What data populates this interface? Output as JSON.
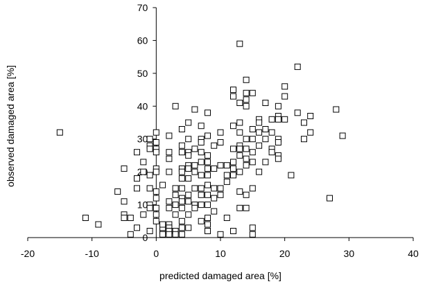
{
  "chart_data": {
    "type": "scatter",
    "title": "",
    "xlabel": "predicted damaged area [%]",
    "ylabel": "observed damaged area [%]",
    "xlim": [
      -20,
      40
    ],
    "ylim": [
      0,
      70
    ],
    "xticks": [
      -20,
      -10,
      0,
      10,
      20,
      30,
      40
    ],
    "yticks": [
      0,
      10,
      20,
      30,
      40,
      50,
      60,
      70
    ],
    "grid": false,
    "marker": "open-square",
    "colors": {
      "marker": "#000000",
      "axis": "#000000",
      "background": "#ffffff"
    },
    "series": [
      {
        "points": [
          [
            -15,
            32
          ],
          [
            -11,
            6
          ],
          [
            -9,
            4
          ],
          [
            -6,
            14
          ],
          [
            -5,
            21
          ],
          [
            -5,
            11
          ],
          [
            -5,
            7
          ],
          [
            -5,
            6
          ],
          [
            -4,
            6
          ],
          [
            -4,
            1
          ],
          [
            -3,
            3
          ],
          [
            -3,
            15
          ],
          [
            -3,
            18
          ],
          [
            -3,
            26
          ],
          [
            -2,
            7
          ],
          [
            -2,
            20
          ],
          [
            -2,
            23
          ],
          [
            -1,
            30
          ],
          [
            -1,
            28
          ],
          [
            -1,
            27
          ],
          [
            -1,
            19
          ],
          [
            -1,
            15
          ],
          [
            -1,
            10
          ],
          [
            -1,
            9
          ],
          [
            -1,
            2
          ],
          [
            0,
            32
          ],
          [
            0,
            29
          ],
          [
            0,
            27
          ],
          [
            0,
            26
          ],
          [
            0,
            21
          ],
          [
            0,
            20
          ],
          [
            0,
            14
          ],
          [
            0,
            12
          ],
          [
            0,
            9
          ],
          [
            0,
            7
          ],
          [
            0,
            5
          ],
          [
            1,
            2
          ],
          [
            1,
            1
          ],
          [
            1,
            3
          ],
          [
            1,
            4
          ],
          [
            1,
            16
          ],
          [
            2,
            31
          ],
          [
            2,
            26
          ],
          [
            2,
            24
          ],
          [
            2,
            20
          ],
          [
            2,
            11
          ],
          [
            2,
            9
          ],
          [
            2,
            4
          ],
          [
            2,
            3
          ],
          [
            2,
            2
          ],
          [
            2,
            1
          ],
          [
            3,
            40
          ],
          [
            3,
            15
          ],
          [
            3,
            13
          ],
          [
            3,
            10
          ],
          [
            3,
            7
          ],
          [
            3,
            2
          ],
          [
            3,
            1
          ],
          [
            4,
            33
          ],
          [
            4,
            28
          ],
          [
            4,
            26
          ],
          [
            4,
            21
          ],
          [
            4,
            20
          ],
          [
            4,
            18
          ],
          [
            4,
            15
          ],
          [
            4,
            12
          ],
          [
            4,
            11
          ],
          [
            4,
            9
          ],
          [
            4,
            5
          ],
          [
            4,
            3
          ],
          [
            4,
            1
          ],
          [
            5,
            35
          ],
          [
            5,
            30
          ],
          [
            5,
            26
          ],
          [
            5,
            25
          ],
          [
            5,
            22
          ],
          [
            5,
            21
          ],
          [
            5,
            18
          ],
          [
            5,
            13
          ],
          [
            5,
            11
          ],
          [
            5,
            7
          ],
          [
            5,
            3
          ],
          [
            6,
            39
          ],
          [
            6,
            27
          ],
          [
            6,
            22
          ],
          [
            6,
            20
          ],
          [
            6,
            15
          ],
          [
            6,
            10
          ],
          [
            6,
            9
          ],
          [
            7,
            34
          ],
          [
            7,
            30
          ],
          [
            7,
            29
          ],
          [
            7,
            26
          ],
          [
            7,
            23
          ],
          [
            7,
            19
          ],
          [
            7,
            15
          ],
          [
            7,
            13
          ],
          [
            7,
            10
          ],
          [
            7,
            5
          ],
          [
            8,
            38
          ],
          [
            8,
            31
          ],
          [
            8,
            25
          ],
          [
            8,
            23
          ],
          [
            8,
            21
          ],
          [
            8,
            19
          ],
          [
            8,
            16
          ],
          [
            8,
            13
          ],
          [
            8,
            10
          ],
          [
            8,
            6
          ],
          [
            8,
            4
          ],
          [
            8,
            2
          ],
          [
            9,
            28
          ],
          [
            9,
            21
          ],
          [
            9,
            15
          ],
          [
            9,
            12
          ],
          [
            9,
            8
          ],
          [
            10,
            32
          ],
          [
            10,
            29
          ],
          [
            10,
            22
          ],
          [
            10,
            15
          ],
          [
            10,
            13
          ],
          [
            10,
            1
          ],
          [
            11,
            22
          ],
          [
            11,
            19
          ],
          [
            11,
            17
          ],
          [
            11,
            6
          ],
          [
            12,
            45
          ],
          [
            12,
            43
          ],
          [
            12,
            34
          ],
          [
            12,
            27
          ],
          [
            12,
            23
          ],
          [
            12,
            21
          ],
          [
            12,
            19
          ],
          [
            12,
            2
          ],
          [
            13,
            59
          ],
          [
            13,
            41
          ],
          [
            13,
            35
          ],
          [
            13,
            32
          ],
          [
            13,
            28
          ],
          [
            13,
            27
          ],
          [
            13,
            25
          ],
          [
            13,
            20
          ],
          [
            13,
            14
          ],
          [
            13,
            9
          ],
          [
            14,
            48
          ],
          [
            14,
            44
          ],
          [
            14,
            42
          ],
          [
            14,
            40
          ],
          [
            14,
            30
          ],
          [
            14,
            27
          ],
          [
            14,
            24
          ],
          [
            14,
            22
          ],
          [
            14,
            13
          ],
          [
            14,
            9
          ],
          [
            15,
            44
          ],
          [
            15,
            33
          ],
          [
            15,
            30
          ],
          [
            15,
            26
          ],
          [
            15,
            23
          ],
          [
            15,
            15
          ],
          [
            15,
            3
          ],
          [
            15,
            1
          ],
          [
            16,
            36
          ],
          [
            16,
            35
          ],
          [
            16,
            32
          ],
          [
            16,
            28
          ],
          [
            16,
            20
          ],
          [
            17,
            41
          ],
          [
            17,
            33
          ],
          [
            17,
            30
          ],
          [
            17,
            23
          ],
          [
            18,
            36
          ],
          [
            18,
            27
          ],
          [
            18,
            26
          ],
          [
            18,
            32
          ],
          [
            19,
            40
          ],
          [
            19,
            37
          ],
          [
            19,
            36
          ],
          [
            19,
            30
          ],
          [
            19,
            29
          ],
          [
            19,
            25
          ],
          [
            19,
            24
          ],
          [
            20,
            46
          ],
          [
            20,
            43
          ],
          [
            20,
            36
          ],
          [
            21,
            19
          ],
          [
            22,
            52
          ],
          [
            22,
            38
          ],
          [
            23,
            35
          ],
          [
            23,
            30
          ],
          [
            24,
            37
          ],
          [
            24,
            32
          ],
          [
            27,
            12
          ],
          [
            28,
            39
          ],
          [
            29,
            31
          ]
        ]
      }
    ]
  }
}
